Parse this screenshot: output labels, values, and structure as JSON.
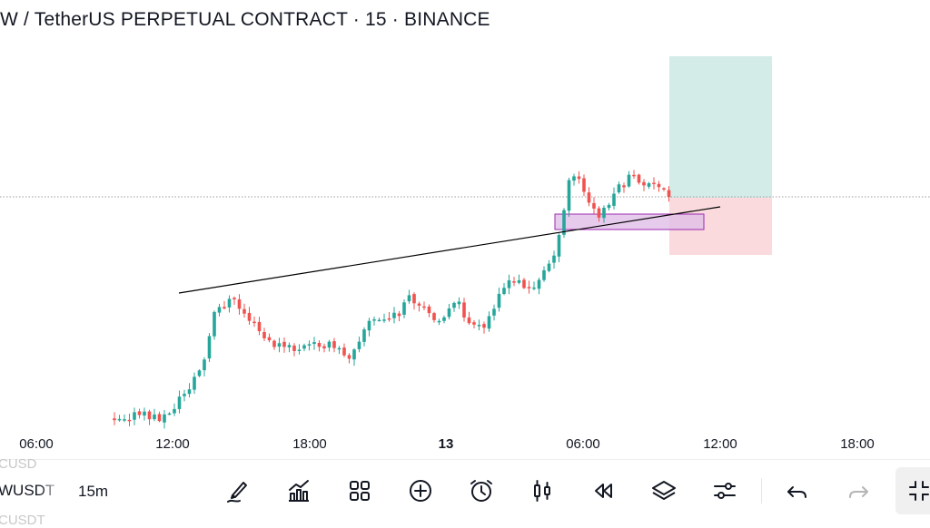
{
  "header": {
    "title": "W / TetherUS PERPETUAL CONTRACT · 15 · BINANCE"
  },
  "chart_data": {
    "type": "candlestick",
    "x_ticks": [
      "06:00",
      "12:00",
      "18:00",
      "13",
      "06:00",
      "12:00",
      "18:00"
    ],
    "bold_x_tick": "13",
    "grid": false,
    "colors": {
      "up": "#26a69a",
      "down": "#ef5350",
      "trendline": "#000000",
      "current_price_line": "#9e9e9e",
      "zone_fill": "#e1bee7",
      "zone_border": "#9c27b0",
      "target": "#d3ece8",
      "stop": "#fadadd"
    },
    "annotations": [
      "rising trendline",
      "support zone box",
      "long position tool (target / stop)"
    ]
  },
  "toolbar": {
    "symbol_prev": "CUSD",
    "symbol": "WUSDT",
    "symbol_next": "CUSDT",
    "interval": "15m",
    "icons": [
      "pen-icon",
      "chart-bars-icon",
      "grid-icon",
      "plus-circle-icon",
      "alarm-icon",
      "candles-icon",
      "rewind-icon",
      "layers-icon",
      "sliders-icon",
      "undo-icon",
      "redo-icon",
      "fullscreen-icon"
    ]
  }
}
